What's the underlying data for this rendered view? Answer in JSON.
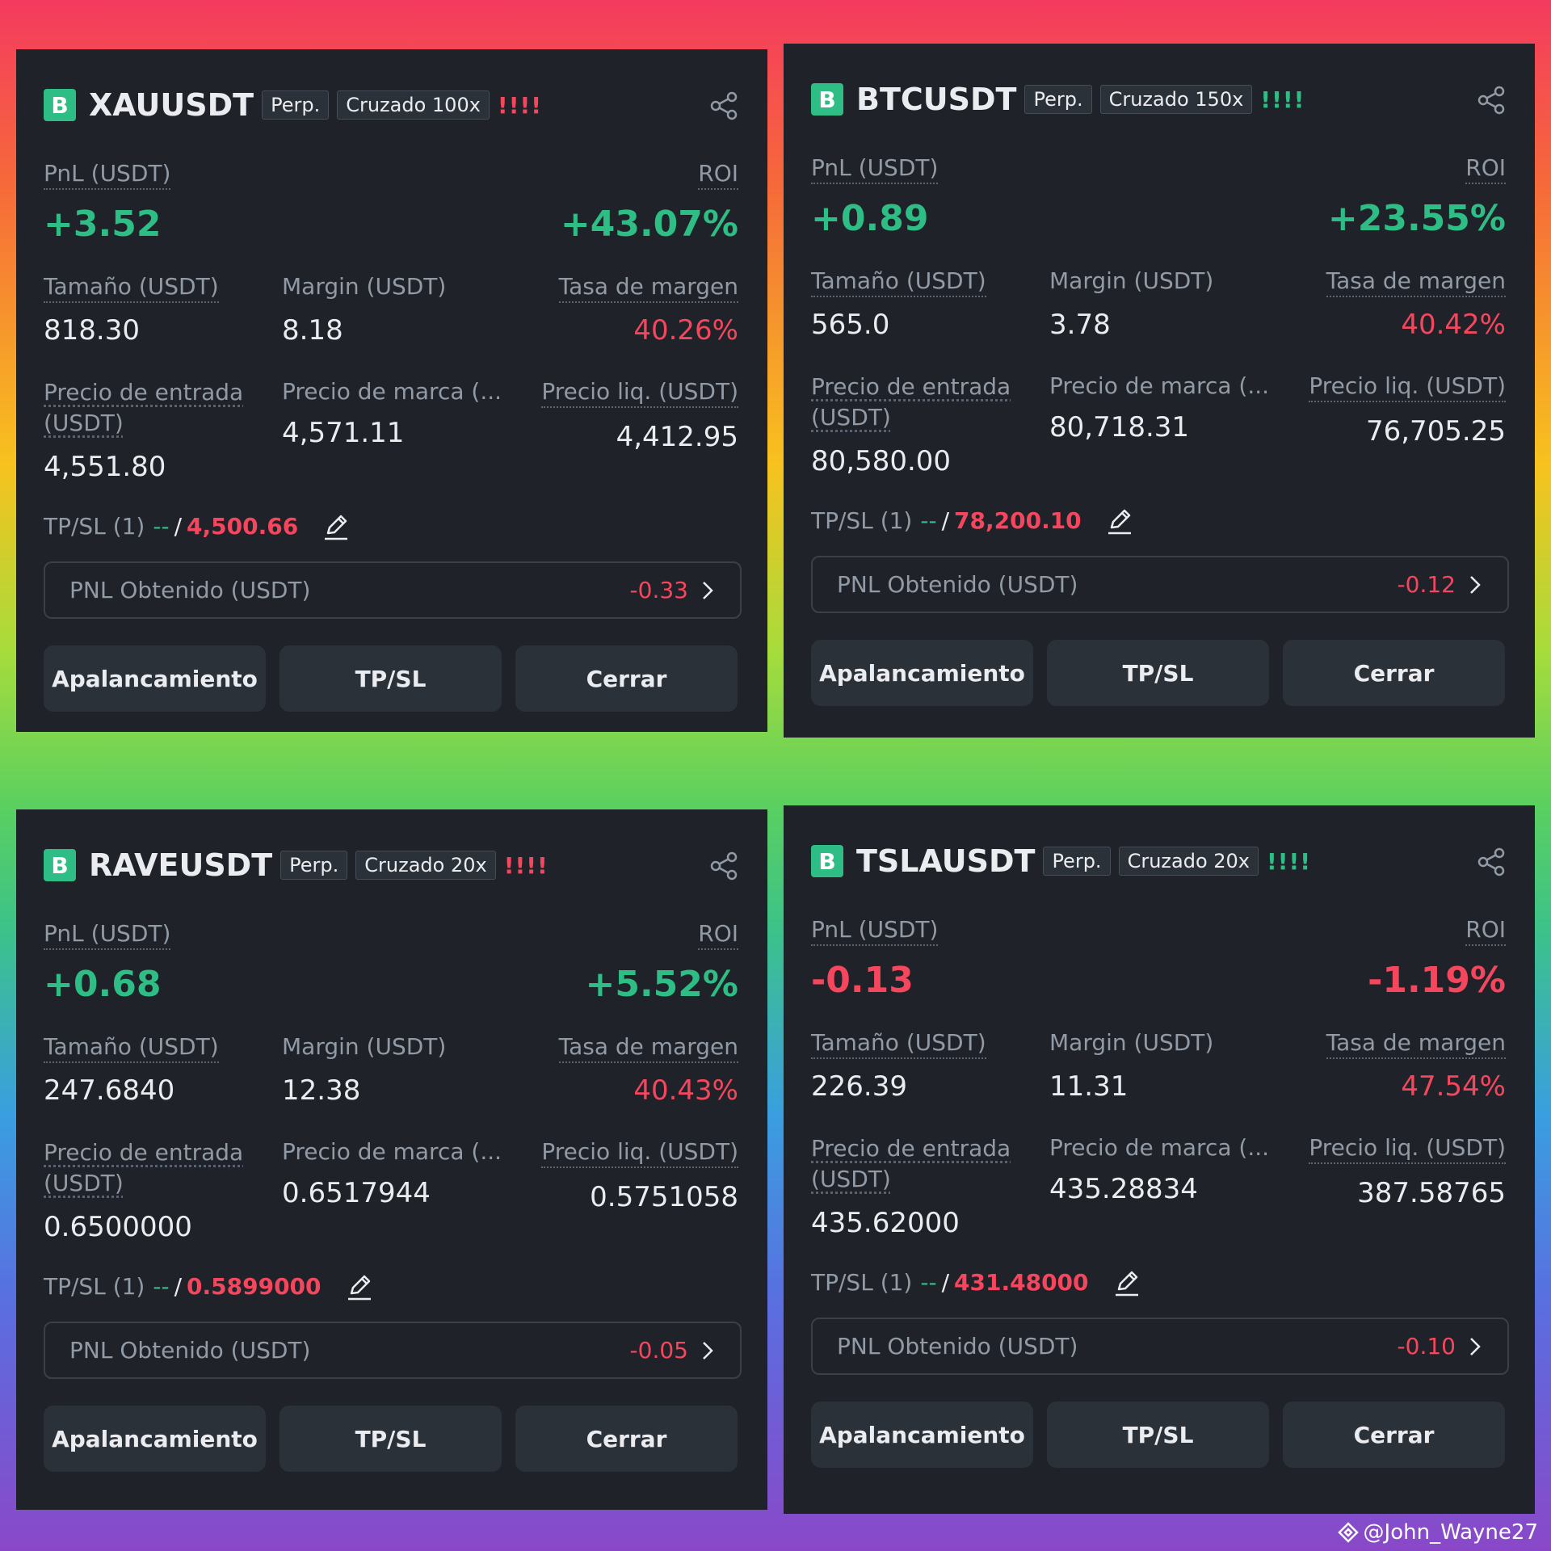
{
  "cards": [
    {
      "badge": "B",
      "symbol": "XAUUSDT",
      "contract": "Perp.",
      "mode": "Cruzado 100x",
      "warning": "!!!!",
      "warning_color": "#f6465d",
      "pnl_label": "PnL (USDT)",
      "pnl": "+3.52",
      "pnl_color": "#2ebd85",
      "roi_label": "ROI",
      "roi": "+43.07%",
      "size_label": "Tamaño (USDT)",
      "size": "818.30",
      "margin_label": "Margin (USDT)",
      "margin": "8.18",
      "margin_rate_label": "Tasa de margen",
      "margin_rate": "40.26%",
      "entry_label": "Precio de entrada (USDT)",
      "entry": "4,551.80",
      "mark_label": "Precio de marca (...",
      "mark": "4,571.11",
      "liq_label": "Precio liq. (USDT)",
      "liq": "4,412.95",
      "tpsl_label": "TP/SL (1)",
      "tp": "--",
      "separator": "/",
      "sl": "4,500.66",
      "realized_label": "PNL Obtenido (USDT)",
      "realized": "-0.33",
      "buttons": [
        "Apalancamiento",
        "TP/SL",
        "Cerrar"
      ]
    },
    {
      "badge": "B",
      "symbol": "BTCUSDT",
      "contract": "Perp.",
      "mode": "Cruzado 150x",
      "warning": "!!!!",
      "warning_color": "#2ebd85",
      "pnl_label": "PnL (USDT)",
      "pnl": "+0.89",
      "pnl_color": "#2ebd85",
      "roi_label": "ROI",
      "roi": "+23.55%",
      "size_label": "Tamaño (USDT)",
      "size": "565.0",
      "margin_label": "Margin (USDT)",
      "margin": "3.78",
      "margin_rate_label": "Tasa de margen",
      "margin_rate": "40.42%",
      "entry_label": "Precio de entrada (USDT)",
      "entry": "80,580.00",
      "mark_label": "Precio de marca (...",
      "mark": "80,718.31",
      "liq_label": "Precio liq. (USDT)",
      "liq": "76,705.25",
      "tpsl_label": "TP/SL (1)",
      "tp": "--",
      "separator": "/",
      "sl": "78,200.10",
      "realized_label": "PNL Obtenido (USDT)",
      "realized": "-0.12",
      "buttons": [
        "Apalancamiento",
        "TP/SL",
        "Cerrar"
      ]
    },
    {
      "badge": "B",
      "symbol": "RAVEUSDT",
      "contract": "Perp.",
      "mode": "Cruzado 20x",
      "warning": "!!!!",
      "warning_color": "#f6465d",
      "pnl_label": "PnL (USDT)",
      "pnl": "+0.68",
      "pnl_color": "#2ebd85",
      "roi_label": "ROI",
      "roi": "+5.52%",
      "size_label": "Tamaño (USDT)",
      "size": "247.6840",
      "margin_label": "Margin (USDT)",
      "margin": "12.38",
      "margin_rate_label": "Tasa de margen",
      "margin_rate": "40.43%",
      "entry_label": "Precio de entrada (USDT)",
      "entry": "0.6500000",
      "mark_label": "Precio de marca (...",
      "mark": "0.6517944",
      "liq_label": "Precio liq. (USDT)",
      "liq": "0.5751058",
      "tpsl_label": "TP/SL (1)",
      "tp": "--",
      "separator": "/",
      "sl": "0.5899000",
      "realized_label": "PNL Obtenido (USDT)",
      "realized": "-0.05",
      "buttons": [
        "Apalancamiento",
        "TP/SL",
        "Cerrar"
      ]
    },
    {
      "badge": "B",
      "symbol": "TSLAUSDT",
      "contract": "Perp.",
      "mode": "Cruzado 20x",
      "warning": "!!!!",
      "warning_color": "#2ebd85",
      "pnl_label": "PnL (USDT)",
      "pnl": "-0.13",
      "pnl_color": "#f6465d",
      "roi_label": "ROI",
      "roi": "-1.19%",
      "size_label": "Tamaño (USDT)",
      "size": "226.39",
      "margin_label": "Margin (USDT)",
      "margin": "11.31",
      "margin_rate_label": "Tasa de margen",
      "margin_rate": "47.54%",
      "entry_label": "Precio de entrada (USDT)",
      "entry": "435.62000",
      "mark_label": "Precio de marca (...",
      "mark": "435.28834",
      "liq_label": "Precio liq. (USDT)",
      "liq": "387.58765",
      "tpsl_label": "TP/SL (1)",
      "tp": "--",
      "separator": "/",
      "sl": "431.48000",
      "realized_label": "PNL Obtenido (USDT)",
      "realized": "-0.10",
      "buttons": [
        "Apalancamiento",
        "TP/SL",
        "Cerrar"
      ]
    }
  ],
  "watermark": "@John_Wayne27"
}
